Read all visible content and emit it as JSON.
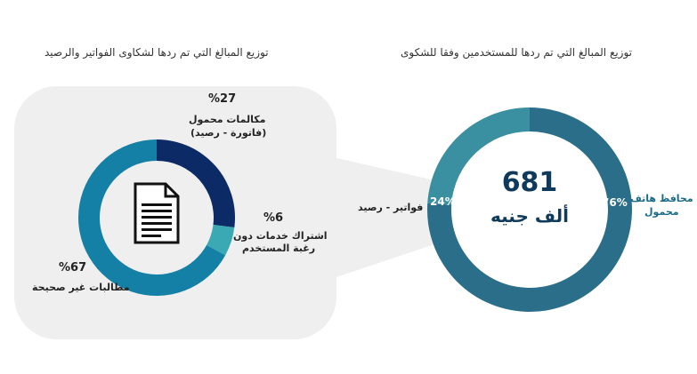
{
  "colors": {
    "panel": "#efefef",
    "dark_navy": "#0c2a66",
    "teal_light": "#3aa9b3",
    "blue_main": "#1580a6",
    "steel_teal_dark": "#2a6e8a",
    "steel_teal_light": "#3a8fa0"
  },
  "icons": {
    "document": "document-icon"
  },
  "chart_data": [
    {
      "type": "pie",
      "title": "توزيع المبالغ  التي تم ردها لشكاوى الفواتير والرصيد",
      "slices": [
        {
          "label": "مكالمات محمول (فاتورة - رصيد)",
          "label_line1": "مكالمات محمول",
          "label_line2": "(فاتورة - رصيد)",
          "value": 27,
          "display": "%27",
          "color": "#0c2a66"
        },
        {
          "label": "اشتراك خدمات دون رغبة المستخدم",
          "label_line1": "اشتراك خدمات دون",
          "label_line2": "رغبة المستخدم",
          "value": 6,
          "display": "%6",
          "color": "#3aa9b3"
        },
        {
          "label": "مطالبات غير صحيحة",
          "label_line1": "مطالبات غير صحيحة",
          "value": 67,
          "display": "%67",
          "color": "#1580a6"
        }
      ]
    },
    {
      "type": "pie",
      "title": "توزيع المبالغ  التي تم ردها للمستخدمين وفقا للشكوى",
      "center_value": "681",
      "center_unit": "ألف جنيه",
      "slices": [
        {
          "label": "محافظ هاتف محمول",
          "label_line1": "محافظ هاتف",
          "label_line2": "محمول",
          "value": 76,
          "display": "76%",
          "color": "#2a6e8a"
        },
        {
          "label": "فواتير - رصيد",
          "value": 24,
          "display": "24%",
          "color": "#3a8fa0"
        }
      ]
    }
  ]
}
